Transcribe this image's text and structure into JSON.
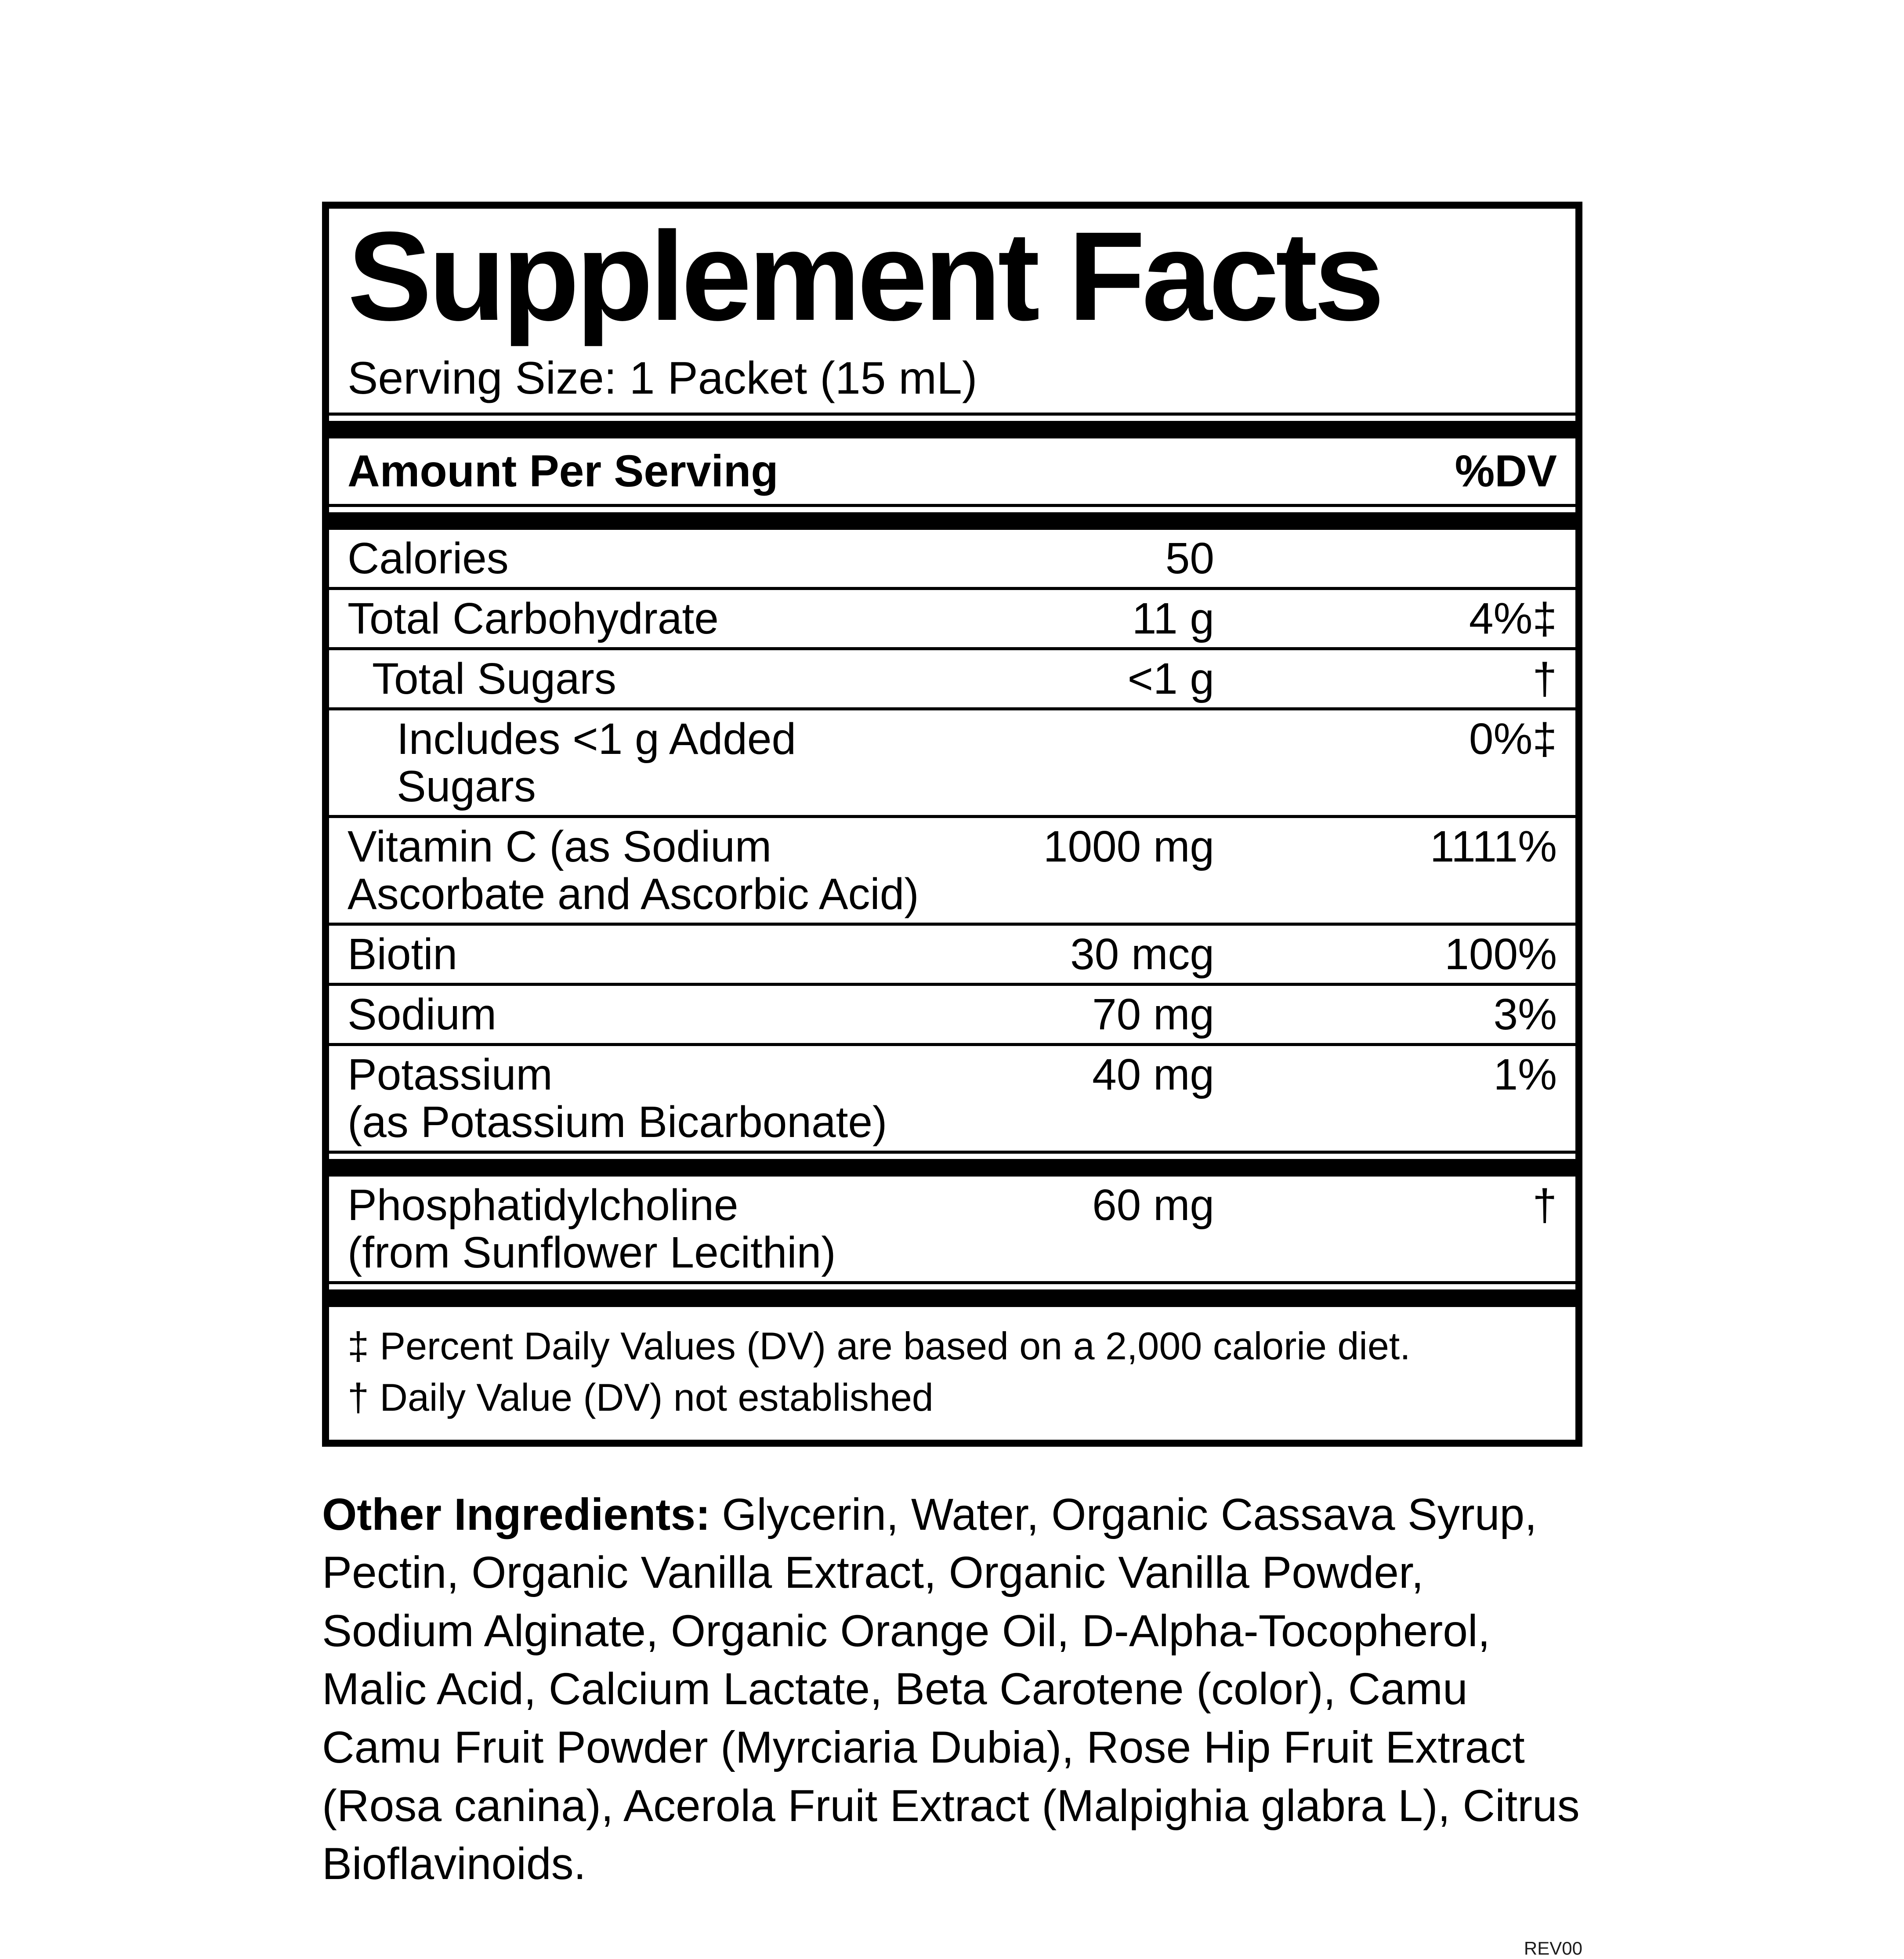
{
  "colors": {
    "ink": "#000000",
    "background": "#ffffff"
  },
  "panel": {
    "title": "Supplement Facts",
    "serving_size": "Serving Size: 1 Packet (15 mL)",
    "header": {
      "left": "Amount Per Serving",
      "right": "%DV"
    },
    "rows": [
      {
        "lines": [
          "Calories"
        ],
        "amount": "50",
        "dv": "",
        "indent": 0
      },
      {
        "lines": [
          "Total Carbohydrate"
        ],
        "amount": "11 g",
        "dv": "4%‡",
        "indent": 0
      },
      {
        "lines": [
          "Total Sugars"
        ],
        "amount": "<1 g",
        "dv": "†",
        "indent": 1
      },
      {
        "lines": [
          "Includes <1 g Added Sugars"
        ],
        "amount": "",
        "dv": "0%‡",
        "indent": 2
      },
      {
        "lines": [
          "Vitamin C (as Sodium",
          "Ascorbate and Ascorbic Acid)"
        ],
        "amount": "1000 mg",
        "dv": "1111%",
        "indent": 0
      },
      {
        "lines": [
          "Biotin"
        ],
        "amount": "30 mcg",
        "dv": "100%",
        "indent": 0
      },
      {
        "lines": [
          "Sodium"
        ],
        "amount": "70 mg",
        "dv": "3%",
        "indent": 0
      },
      {
        "lines": [
          "Potassium",
          "(as Potassium Bicarbonate)"
        ],
        "amount": "40 mg",
        "dv": "1%",
        "indent": 0
      },
      {
        "lines": [
          "Phosphatidylcholine",
          "(from Sunflower Lecithin)"
        ],
        "amount": "60 mg",
        "dv": "†",
        "indent": 0
      }
    ],
    "footnotes": [
      "‡ Percent Daily Values (DV) are based on a 2,000 calorie diet.",
      "† Daily Value (DV) not established"
    ]
  },
  "other_ingredients": {
    "label": "Other Ingredients:",
    "text": "Glycerin, Water, Organic Cassava Syrup, Pectin, Organic Vanilla Extract, Organic Vanilla Powder, Sodium Alginate, Organic Orange Oil, D-Alpha-Tocopherol, Malic Acid, Calcium Lactate, Beta Carotene (color), Camu Camu Fruit Powder (Myrciaria Dubia), Rose Hip Fruit Extract (Rosa canina), Acerola Fruit Extract (Malpighia glabra L), Citrus Bioflavinoids."
  },
  "rev": "REV00"
}
